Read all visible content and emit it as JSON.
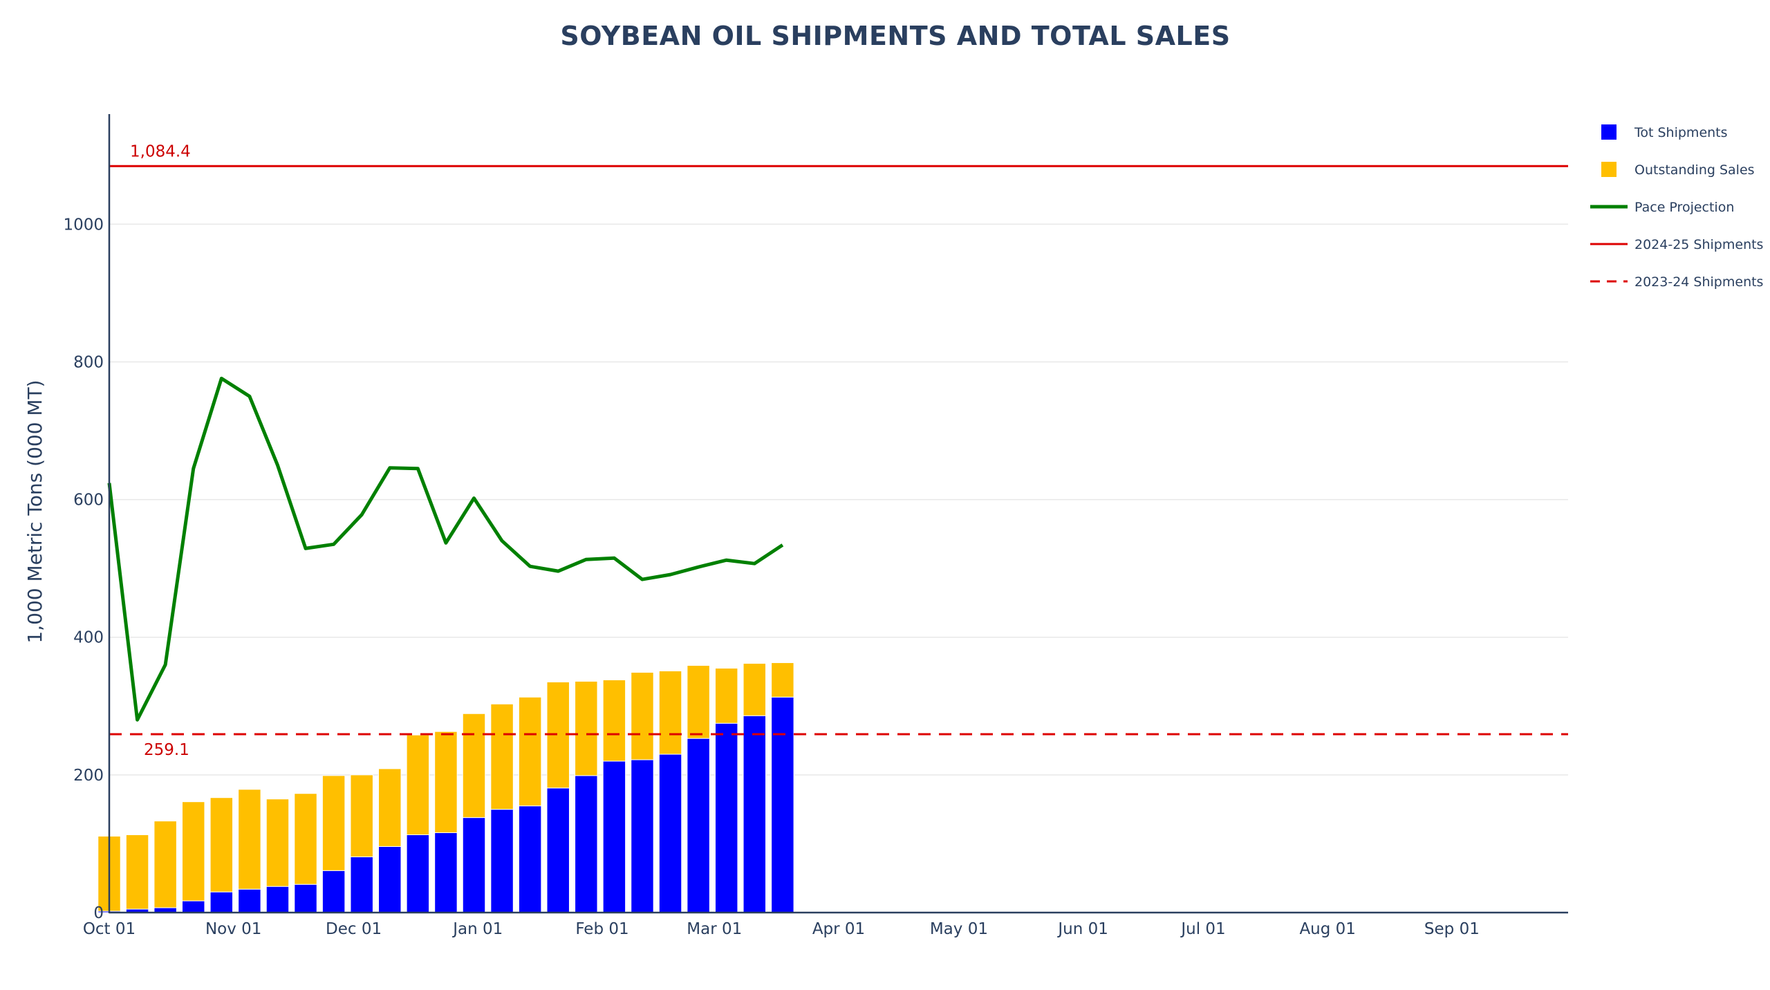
{
  "chart_data": {
    "type": "bar",
    "title": "SOYBEAN OIL SHIPMENTS AND TOTAL SALES",
    "ylabel": "1,000 Metric Tons (000 MT)",
    "xlabel": "",
    "ylim": [
      0,
      1160
    ],
    "yticks": [
      0,
      200,
      400,
      600,
      800,
      1000
    ],
    "xlim": [
      "2024-10-01",
      "2025-09-30"
    ],
    "xticks": [
      {
        "date": "2024-10-01",
        "label": "Oct 01"
      },
      {
        "date": "2024-11-01",
        "label": "Nov 01"
      },
      {
        "date": "2024-12-01",
        "label": "Dec 01"
      },
      {
        "date": "2025-01-01",
        "label": "Jan 01"
      },
      {
        "date": "2025-02-01",
        "label": "Feb 01"
      },
      {
        "date": "2025-03-01",
        "label": "Mar 01"
      },
      {
        "date": "2025-04-01",
        "label": "Apr 01"
      },
      {
        "date": "2025-05-01",
        "label": "May 01"
      },
      {
        "date": "2025-06-01",
        "label": "Jun 01"
      },
      {
        "date": "2025-07-01",
        "label": "Jul 01"
      },
      {
        "date": "2025-08-01",
        "label": "Aug 01"
      },
      {
        "date": "2025-09-01",
        "label": "Sep 01"
      }
    ],
    "grid": true,
    "barmode": "stack",
    "legend_position": "right",
    "x": [
      "2024-10-01",
      "2024-10-08",
      "2024-10-15",
      "2024-10-22",
      "2024-10-29",
      "2024-11-05",
      "2024-11-12",
      "2024-11-19",
      "2024-11-26",
      "2024-12-03",
      "2024-12-10",
      "2024-12-17",
      "2024-12-24",
      "2024-12-31",
      "2025-01-07",
      "2025-01-14",
      "2025-01-21",
      "2025-01-28",
      "2025-02-04",
      "2025-02-11",
      "2025-02-18",
      "2025-02-25",
      "2025-03-04",
      "2025-03-11",
      "2025-03-18"
    ],
    "series": [
      {
        "name": "Tot Shipments",
        "kind": "bar",
        "color": "#0000ff",
        "values": [
          2,
          5,
          7,
          17,
          30,
          34,
          38,
          41,
          61,
          81,
          96,
          113,
          116,
          138,
          150,
          155,
          181,
          199,
          220,
          222,
          230,
          253,
          275,
          286,
          313
        ]
      },
      {
        "name": "Outstanding Sales",
        "kind": "bar",
        "color": "#ffbf00",
        "values": [
          109,
          108,
          126,
          144,
          137,
          145,
          127,
          132,
          138,
          119,
          113,
          145,
          147,
          151,
          153,
          158,
          154,
          137,
          118,
          127,
          121,
          106,
          80,
          76,
          50
        ]
      },
      {
        "name": "Pace Projection",
        "kind": "line",
        "color": "#008000",
        "values": [
          624,
          280,
          360,
          645,
          776,
          750,
          650,
          529,
          535,
          578,
          646,
          645,
          537,
          602,
          540,
          503,
          496,
          513,
          515,
          484,
          491,
          502,
          512,
          507,
          534
        ]
      }
    ],
    "reference_lines": [
      {
        "name": "2024-25 Shipments",
        "value": 1084.4,
        "label": "1,084.4",
        "color": "#dd0000",
        "style": "solid"
      },
      {
        "name": "2023-24 Shipments",
        "value": 259.1,
        "label": "259.1",
        "color": "#dd0000",
        "style": "dashed"
      }
    ]
  }
}
